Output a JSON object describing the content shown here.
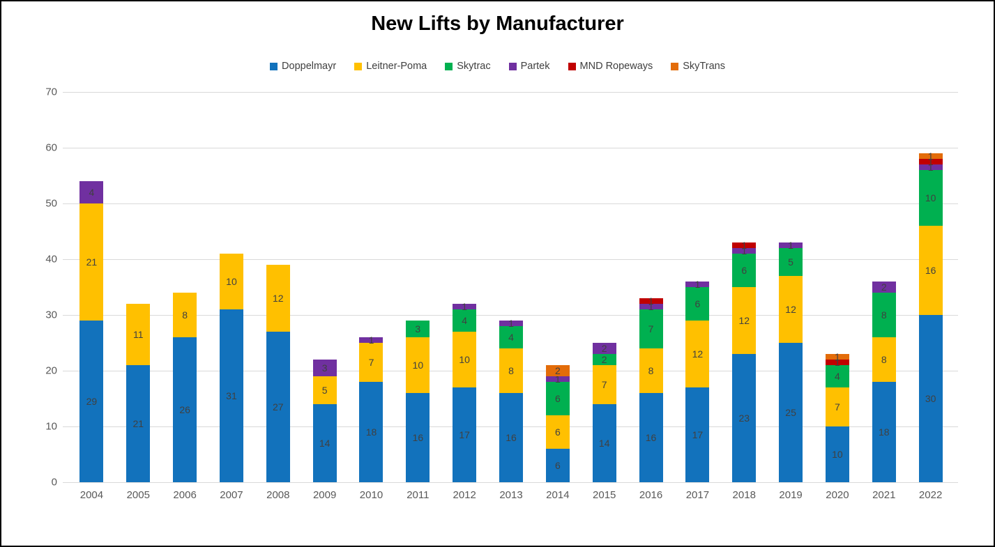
{
  "title": "New Lifts by Manufacturer",
  "chart_data": {
    "type": "bar",
    "stacked": true,
    "title": "New Lifts by Manufacturer",
    "legend_position": "top",
    "grid": true,
    "ylim": [
      0,
      70
    ],
    "yticks": [
      0,
      10,
      20,
      30,
      40,
      50,
      60,
      70
    ],
    "categories": [
      "2004",
      "2005",
      "2006",
      "2007",
      "2008",
      "2009",
      "2010",
      "2011",
      "2012",
      "2013",
      "2014",
      "2015",
      "2016",
      "2017",
      "2018",
      "2019",
      "2020",
      "2021",
      "2022"
    ],
    "series": [
      {
        "name": "Doppelmayr",
        "color": "#1272bc",
        "values": [
          29,
          21,
          26,
          31,
          27,
          14,
          18,
          16,
          17,
          16,
          6,
          14,
          16,
          17,
          23,
          25,
          10,
          18,
          30
        ]
      },
      {
        "name": "Leitner-Poma",
        "color": "#ffc000",
        "values": [
          21,
          11,
          8,
          10,
          12,
          5,
          7,
          10,
          10,
          8,
          6,
          7,
          8,
          12,
          12,
          12,
          7,
          8,
          16
        ]
      },
      {
        "name": "Skytrac",
        "color": "#00b050",
        "values": [
          0,
          0,
          0,
          0,
          0,
          0,
          0,
          3,
          4,
          4,
          6,
          2,
          7,
          6,
          6,
          5,
          4,
          8,
          10
        ]
      },
      {
        "name": "Partek",
        "color": "#7030a0",
        "values": [
          4,
          0,
          0,
          0,
          0,
          3,
          1,
          0,
          1,
          1,
          1,
          2,
          1,
          1,
          1,
          1,
          0,
          2,
          1
        ]
      },
      {
        "name": "MND Ropeways",
        "color": "#c00000",
        "values": [
          0,
          0,
          0,
          0,
          0,
          0,
          0,
          0,
          0,
          0,
          0,
          0,
          1,
          0,
          1,
          0,
          1,
          0,
          1
        ]
      },
      {
        "name": "SkyTrans",
        "color": "#e36c09",
        "values": [
          0,
          0,
          0,
          0,
          0,
          0,
          0,
          0,
          0,
          0,
          2,
          0,
          0,
          0,
          0,
          0,
          1,
          0,
          1
        ]
      }
    ],
    "totals": [
      54,
      32,
      34,
      41,
      39,
      22,
      26,
      29,
      32,
      29,
      21,
      25,
      33,
      36,
      43,
      43,
      23,
      36,
      59
    ],
    "colors": {
      "gridline": "#d9d9d9",
      "axis_label": "#595959",
      "segment_label": "#404040",
      "title": "#000000"
    }
  }
}
